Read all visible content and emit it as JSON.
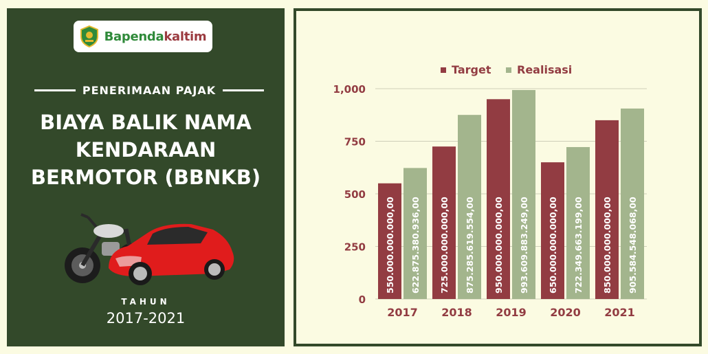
{
  "logo": {
    "text_a": "Bapenda",
    "text_b": "kaltim"
  },
  "infographic": {
    "subtitle": "PENERIMAAN PAJAK",
    "title_lines": [
      "BIAYA BALIK NAMA",
      "KENDARAAN",
      "BERMOTOR (BBNKB)"
    ],
    "year_caption": "TAHUN",
    "year_range": "2017-2021"
  },
  "colors": {
    "target": "#923c42",
    "realisasi": "#a3b58d",
    "panel": "#33492a",
    "background": "#fbfbe2"
  },
  "chart_data": {
    "type": "bar",
    "categories": [
      "2017",
      "2018",
      "2019",
      "2020",
      "2021"
    ],
    "series": [
      {
        "name": "Target",
        "values": [
          550,
          725,
          950,
          650,
          850
        ],
        "labels": [
          "550.000.000.000,00",
          "725.000.000.000,00",
          "950.000.000.000,00",
          "650.000.000.000,00",
          "850.000.000.000,00"
        ]
      },
      {
        "name": "Realisasi",
        "values": [
          622.875,
          875.286,
          993.61,
          722.35,
          905.585
        ],
        "labels": [
          "622.875.380.936,00",
          "875.285.619.554,00",
          "993.609.883.249,00",
          "722.349.663.199,00",
          "905.584.548.068,00"
        ]
      }
    ],
    "ylim": [
      0,
      1000
    ],
    "yticks": [
      0,
      250,
      500,
      750,
      1000
    ],
    "ytick_labels": [
      "0",
      "250",
      "500",
      "750",
      "1,000"
    ],
    "legend_position": "top",
    "grid": "horizontal"
  }
}
